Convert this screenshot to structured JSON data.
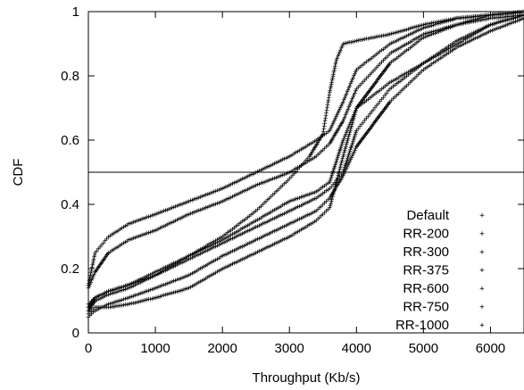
{
  "chart_data": {
    "type": "scatter",
    "title": "",
    "xlabel": "Throughput (Kb/s)",
    "ylabel": "CDF",
    "xlim": [
      0,
      6500
    ],
    "ylim": [
      0,
      1
    ],
    "x_ticks": [
      "0",
      "1000",
      "2000",
      "3000",
      "4000",
      "5000",
      "6000"
    ],
    "y_ticks": [
      "0",
      "0.2",
      "0.4",
      "0.6",
      "0.8",
      "1"
    ],
    "x_tick_values": [
      0,
      1000,
      2000,
      3000,
      4000,
      5000,
      6000
    ],
    "y_tick_values": [
      0,
      0.2,
      0.4,
      0.6,
      0.8,
      1
    ],
    "reference_line_y": 0.5,
    "grid": false,
    "legend_position": "bottom-right",
    "marker": "+",
    "series": [
      {
        "name": "Default",
        "color": "#e41a1c",
        "x": [
          0,
          100,
          300,
          600,
          1000,
          1500,
          2000,
          2500,
          3000,
          3400,
          3600,
          3800,
          4000,
          4500,
          5000,
          5500,
          6000,
          6500
        ],
        "y": [
          0.15,
          0.25,
          0.3,
          0.34,
          0.37,
          0.41,
          0.45,
          0.5,
          0.55,
          0.6,
          0.63,
          0.72,
          0.82,
          0.9,
          0.95,
          0.98,
          0.99,
          1.0
        ]
      },
      {
        "name": "RR-200",
        "color": "#2fcc2f",
        "x": [
          0,
          100,
          300,
          600,
          1000,
          1500,
          2000,
          2500,
          3000,
          3400,
          3600,
          3800,
          4000,
          4500,
          5000,
          5500,
          6000,
          6500
        ],
        "y": [
          0.14,
          0.19,
          0.25,
          0.29,
          0.32,
          0.37,
          0.41,
          0.46,
          0.5,
          0.55,
          0.59,
          0.66,
          0.76,
          0.87,
          0.93,
          0.96,
          0.98,
          0.99
        ]
      },
      {
        "name": "RR-300",
        "color": "#1a1ad4",
        "x": [
          0,
          100,
          300,
          600,
          1000,
          1500,
          2000,
          2500,
          3000,
          3400,
          3600,
          3800,
          4000,
          4500,
          5000,
          5500,
          6000,
          6500
        ],
        "y": [
          0.07,
          0.1,
          0.12,
          0.14,
          0.18,
          0.24,
          0.29,
          0.35,
          0.41,
          0.44,
          0.47,
          0.6,
          0.7,
          0.78,
          0.84,
          0.9,
          0.96,
          0.99
        ]
      },
      {
        "name": "RR-375",
        "color": "#d12fd1",
        "x": [
          0,
          100,
          300,
          600,
          1000,
          1500,
          2000,
          2500,
          3000,
          3400,
          3600,
          3800,
          4000,
          4500,
          5000,
          5500,
          6000,
          6500
        ],
        "y": [
          0.05,
          0.07,
          0.09,
          0.11,
          0.14,
          0.18,
          0.24,
          0.29,
          0.34,
          0.38,
          0.42,
          0.49,
          0.58,
          0.72,
          0.82,
          0.89,
          0.94,
          0.98
        ]
      },
      {
        "name": "RR-600",
        "color": "#2fd8e8",
        "x": [
          0,
          100,
          300,
          600,
          1000,
          1500,
          2000,
          2500,
          3000,
          3400,
          3600,
          3800,
          4000,
          4500,
          5000,
          5500,
          6000,
          6500
        ],
        "y": [
          0.06,
          0.08,
          0.08,
          0.09,
          0.11,
          0.14,
          0.2,
          0.25,
          0.3,
          0.35,
          0.39,
          0.55,
          0.7,
          0.84,
          0.92,
          0.96,
          0.99,
          1.0
        ]
      },
      {
        "name": "RR-750",
        "color": "#ffe000",
        "x": [
          0,
          100,
          300,
          600,
          1000,
          1500,
          2000,
          2500,
          3000,
          3400,
          3600,
          3800,
          4000,
          4500,
          5000,
          5500,
          6000,
          6500
        ],
        "y": [
          0.09,
          0.11,
          0.13,
          0.15,
          0.18,
          0.23,
          0.28,
          0.33,
          0.38,
          0.42,
          0.45,
          0.5,
          0.63,
          0.76,
          0.84,
          0.91,
          0.96,
          0.99
        ]
      },
      {
        "name": "RR-1000",
        "color": "#000000",
        "x": [
          0,
          100,
          300,
          600,
          1000,
          1500,
          2000,
          2500,
          3000,
          3300,
          3500,
          3600,
          3700,
          3800,
          4000,
          4500,
          5000,
          5500,
          6000,
          6500
        ],
        "y": [
          0.08,
          0.11,
          0.13,
          0.15,
          0.19,
          0.24,
          0.3,
          0.38,
          0.48,
          0.55,
          0.62,
          0.75,
          0.85,
          0.9,
          0.91,
          0.93,
          0.96,
          0.98,
          0.99,
          1.0
        ]
      }
    ]
  }
}
